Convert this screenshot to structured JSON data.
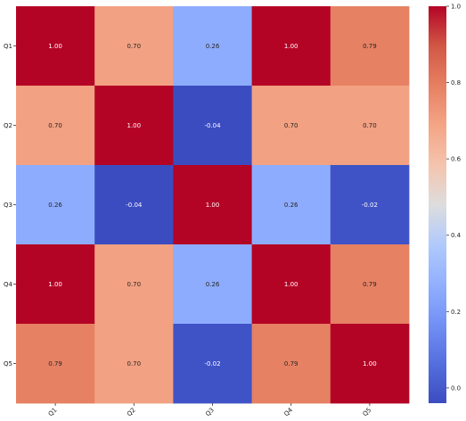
{
  "chart_data": {
    "type": "heatmap",
    "title": "",
    "xlabel": "",
    "ylabel": "",
    "x_categories": [
      "Q1",
      "Q2",
      "Q3",
      "Q4",
      "Q5"
    ],
    "y_categories": [
      "Q1",
      "Q2",
      "Q3",
      "Q4",
      "Q5"
    ],
    "values": [
      [
        1.0,
        0.7,
        0.26,
        1.0,
        0.79
      ],
      [
        0.7,
        1.0,
        -0.04,
        0.7,
        0.7
      ],
      [
        0.26,
        -0.04,
        1.0,
        0.26,
        -0.02
      ],
      [
        1.0,
        0.7,
        0.26,
        1.0,
        0.79
      ],
      [
        0.79,
        0.7,
        -0.02,
        0.79,
        1.0
      ]
    ],
    "cell_labels": [
      [
        "1.00",
        "0.70",
        "0.26",
        "1.00",
        "0.79"
      ],
      [
        "0.70",
        "1.00",
        "-0.04",
        "0.70",
        "0.70"
      ],
      [
        "0.26",
        "-0.04",
        "1.00",
        "0.26",
        "-0.02"
      ],
      [
        "1.00",
        "0.70",
        "0.26",
        "1.00",
        "0.79"
      ],
      [
        "0.79",
        "0.70",
        "-0.02",
        "0.79",
        "1.00"
      ]
    ],
    "colormap": "coolwarm",
    "vmin": -0.04,
    "vmax": 1.0,
    "colorbar": {
      "ticks": [
        0.0,
        0.2,
        0.4,
        0.6,
        0.8,
        1.0
      ],
      "tick_labels": [
        "0.0",
        "0.2",
        "0.4",
        "0.6",
        "0.8",
        "1.0"
      ]
    },
    "grid": false,
    "x_tick_rotation": "45-degrees",
    "colors": {
      "low": "#3b4cc0",
      "mid": "#dddddd",
      "high": "#b40426"
    }
  }
}
